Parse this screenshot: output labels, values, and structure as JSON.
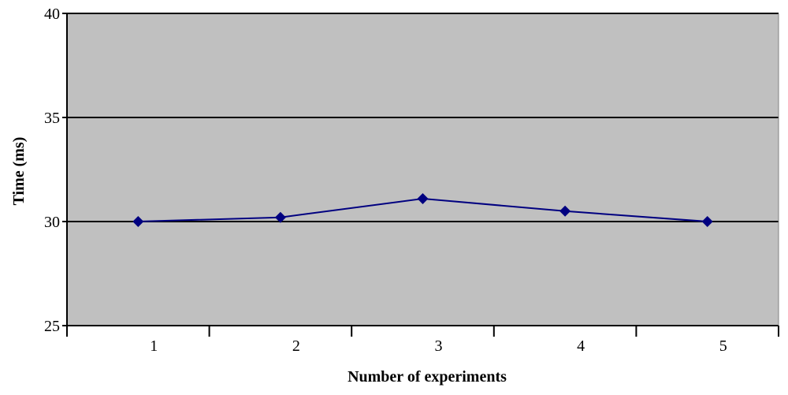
{
  "chart_data": {
    "type": "line",
    "title": "",
    "xlabel": "Number of experiments",
    "ylabel": "Time (ms)",
    "categories": [
      "1",
      "2",
      "3",
      "4",
      "5"
    ],
    "series": [
      {
        "values": [
          30.0,
          30.2,
          31.1,
          30.5,
          30.0
        ]
      }
    ],
    "ylim": [
      25,
      40
    ],
    "yticks": [
      "25",
      "30",
      "35",
      "40"
    ],
    "grid": "horizontal",
    "legend": "none",
    "colors": {
      "plot_background": "#c0c0c0",
      "line": "#000080",
      "marker": "#000080",
      "gridline": "#000000"
    }
  }
}
